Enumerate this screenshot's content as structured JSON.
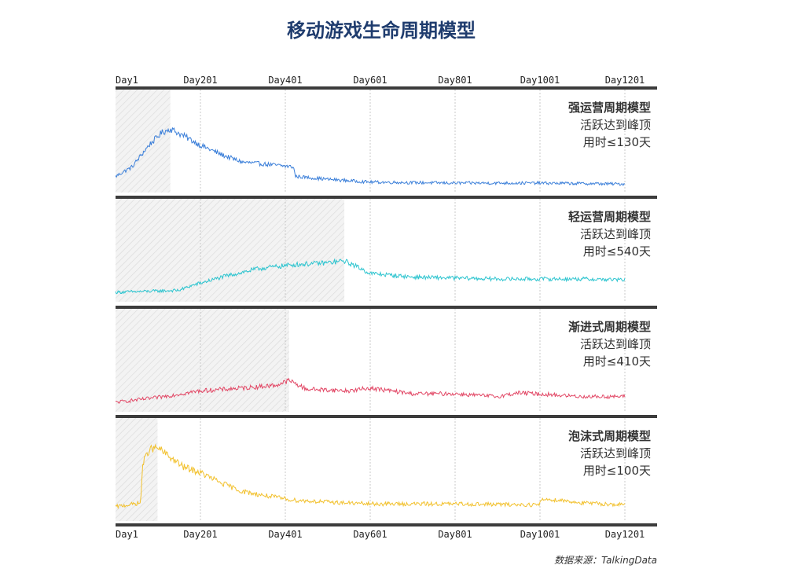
{
  "title": "移动游戏生命周期模型",
  "source_note": "数据来源：TalkingData",
  "chart_data": {
    "type": "line",
    "x_ticks": [
      "Day1",
      "Day201",
      "Day401",
      "Day601",
      "Day801",
      "Day1001",
      "Day1201"
    ],
    "xlim": [
      1,
      1201
    ],
    "grid": true,
    "panels": [
      {
        "name": "强运营周期模型",
        "line1": "活跃达到峰顶",
        "line2": "用时≤130天",
        "peak_day": 130,
        "color": "#3b7fd9",
        "points": [
          [
            1,
            0.12
          ],
          [
            40,
            0.22
          ],
          [
            80,
            0.45
          ],
          [
            110,
            0.58
          ],
          [
            130,
            0.62
          ],
          [
            160,
            0.55
          ],
          [
            200,
            0.45
          ],
          [
            250,
            0.35
          ],
          [
            300,
            0.27
          ],
          [
            350,
            0.25
          ],
          [
            420,
            0.22
          ],
          [
            425,
            0.12
          ],
          [
            500,
            0.09
          ],
          [
            600,
            0.06
          ],
          [
            800,
            0.05
          ],
          [
            1000,
            0.05
          ],
          [
            1200,
            0.04
          ]
        ],
        "noise": 0.07
      },
      {
        "name": "轻运营周期模型",
        "line1": "活跃达到峰顶",
        "line2": "用时≤540天",
        "peak_day": 540,
        "color": "#2cc4cf",
        "points": [
          [
            1,
            0.05
          ],
          [
            150,
            0.07
          ],
          [
            180,
            0.12
          ],
          [
            260,
            0.22
          ],
          [
            340,
            0.3
          ],
          [
            420,
            0.34
          ],
          [
            500,
            0.36
          ],
          [
            540,
            0.38
          ],
          [
            570,
            0.32
          ],
          [
            600,
            0.25
          ],
          [
            700,
            0.21
          ],
          [
            900,
            0.19
          ],
          [
            1100,
            0.19
          ],
          [
            1200,
            0.18
          ]
        ],
        "noise": 0.07
      },
      {
        "name": "渐进式周期模型",
        "line1": "活跃达到峰顶",
        "line2": "用时≤410天",
        "peak_day": 410,
        "color": "#e24866",
        "points": [
          [
            1,
            0.05
          ],
          [
            100,
            0.1
          ],
          [
            200,
            0.17
          ],
          [
            300,
            0.2
          ],
          [
            380,
            0.23
          ],
          [
            410,
            0.28
          ],
          [
            450,
            0.19
          ],
          [
            550,
            0.17
          ],
          [
            600,
            0.2
          ],
          [
            700,
            0.14
          ],
          [
            800,
            0.14
          ],
          [
            900,
            0.11
          ],
          [
            950,
            0.15
          ],
          [
            1100,
            0.11
          ],
          [
            1200,
            0.11
          ]
        ],
        "noise": 0.08
      },
      {
        "name": "泡沫式周期模型",
        "line1": "活跃达到峰顶",
        "line2": "用时≤100天",
        "peak_day": 100,
        "color": "#f2c12e",
        "points": [
          [
            1,
            0.1
          ],
          [
            60,
            0.14
          ],
          [
            65,
            0.55
          ],
          [
            80,
            0.7
          ],
          [
            100,
            0.72
          ],
          [
            130,
            0.62
          ],
          [
            160,
            0.52
          ],
          [
            200,
            0.46
          ],
          [
            250,
            0.35
          ],
          [
            300,
            0.26
          ],
          [
            350,
            0.22
          ],
          [
            420,
            0.17
          ],
          [
            500,
            0.15
          ],
          [
            600,
            0.13
          ],
          [
            800,
            0.13
          ],
          [
            1000,
            0.12
          ],
          [
            1005,
            0.18
          ],
          [
            1050,
            0.17
          ],
          [
            1100,
            0.14
          ],
          [
            1200,
            0.12
          ]
        ],
        "noise": 0.08
      }
    ]
  }
}
